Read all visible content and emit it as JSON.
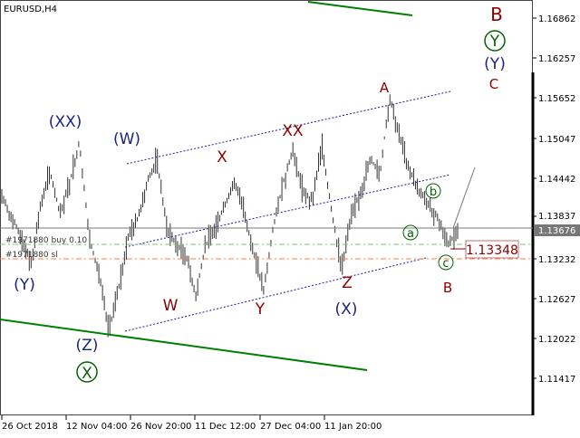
{
  "header": {
    "title": "EURUSD,H4"
  },
  "chart_data": {
    "type": "bar",
    "symbol": "EURUSD",
    "timeframe": "H4",
    "x_tick_labels": [
      "26 Oct 2018",
      "12 Nov 04:00",
      "26 Nov 20:00",
      "11 Dec 12:00",
      "27 Dec 04:00",
      "11 Jan 20:00"
    ],
    "y_tick_labels": [
      "1.16862",
      "1.16257",
      "1.15652",
      "1.15047",
      "1.14442",
      "1.13837",
      "1.13232",
      "1.12627",
      "1.12022",
      "1.11417"
    ],
    "ylim": [
      1.1115,
      1.1725
    ],
    "current_price": "1.13676",
    "price_path": [
      1.14193,
      1.1385,
      1.13576,
      1.13166,
      1.14056,
      1.14535,
      1.13919,
      1.14398,
      1.15014,
      1.13576,
      1.13029,
      1.12139,
      1.12755,
      1.13576,
      1.1385,
      1.14398,
      1.1474,
      1.13713,
      1.13439,
      1.13303,
      1.12687,
      1.13439,
      1.13713,
      1.14056,
      1.14398,
      1.13987,
      1.13303,
      1.12755,
      1.13713,
      1.14398,
      1.14877,
      1.14261,
      1.14124,
      1.14945,
      1.13987,
      1.13097,
      1.1385,
      1.14261,
      1.1474,
      1.14535,
      1.15698,
      1.15082,
      1.14603,
      1.14261,
      1.14056,
      1.1385,
      1.13467,
      1.13645
    ],
    "order_lines": [
      {
        "label": "#1971880 buy 0.10",
        "price": 1.1344,
        "color": "#7fbf7f"
      },
      {
        "label": "#1971880 sl",
        "price": 1.1322,
        "color": "#ff7f3f"
      }
    ],
    "target_label": "1.13348",
    "wave_labels": {
      "xx_navy": "(XX)",
      "w_navy": "(W)",
      "x_red": "X",
      "xx_red": "XX",
      "a_red": "A",
      "b_circle": "b",
      "a_circle": "a",
      "c_circle": "c",
      "b_red": "B",
      "z_red": "Z",
      "x_navy": "(X)",
      "y_red": "Y",
      "w_red": "W",
      "y_navy": "(Y)",
      "z_navy": "(Z)",
      "x_circle": "X",
      "top_b": "B",
      "top_y_circle": "Y",
      "top_y_navy": "(Y)",
      "top_c": "C"
    },
    "colors": {
      "bars": "#333333",
      "wave_navy": "#1a237e",
      "wave_red": "#8b0000",
      "wave_green": "#006400",
      "channel": "#1a1aa0",
      "trend": "#008000"
    }
  }
}
